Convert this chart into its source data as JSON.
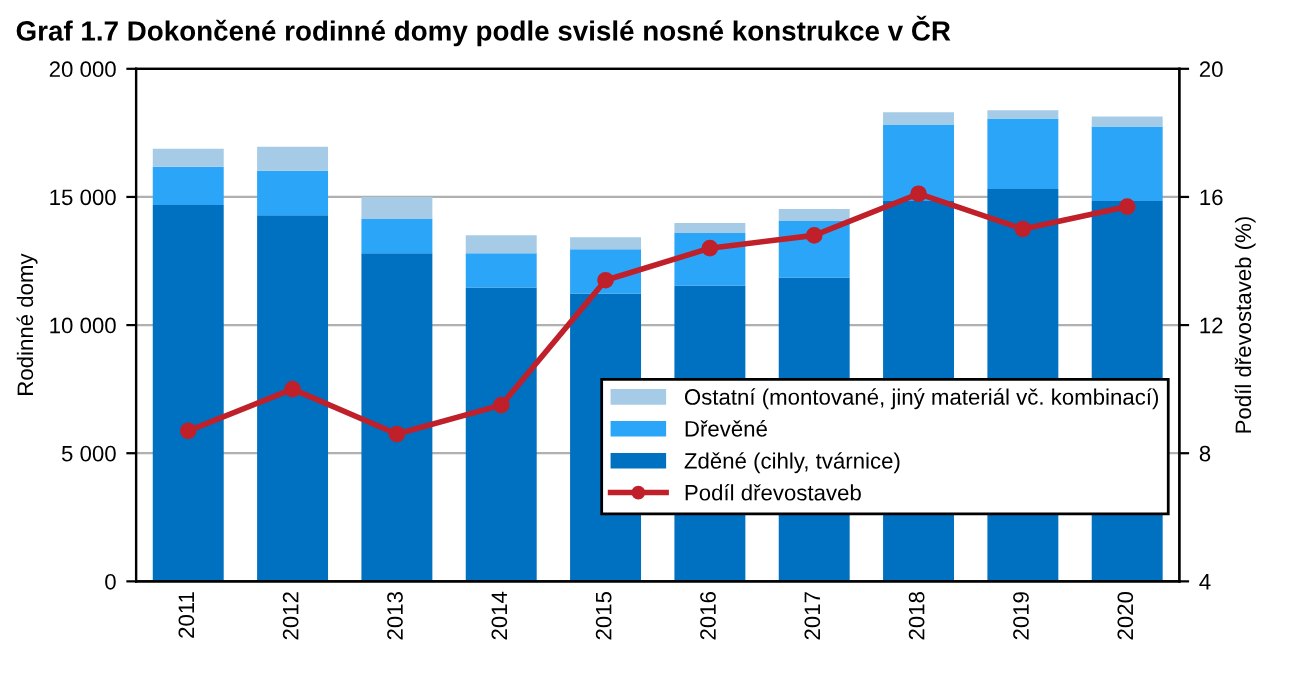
{
  "chart_data": {
    "type": "bar",
    "title": "Graf 1.7 Dokončené rodinné domy podle svislé nosné konstrukce v ČR",
    "ylabel": "Rodinné domy",
    "y2label": "Podíl dřevostaveb (%)",
    "categories": [
      "2011",
      "2012",
      "2013",
      "2014",
      "2015",
      "2016",
      "2017",
      "2018",
      "2019",
      "2020"
    ],
    "stacked": true,
    "series": [
      {
        "name": "Zděné (cihly, tvárnice)",
        "color": "#0070c0",
        "values": [
          14690,
          14290,
          12800,
          11470,
          11230,
          11540,
          11860,
          14840,
          15310,
          14840
        ]
      },
      {
        "name": "Dřevěné",
        "color": "#2aa5f8",
        "values": [
          1490,
          1730,
          1340,
          1330,
          1730,
          2050,
          2200,
          2990,
          2750,
          2910
        ]
      },
      {
        "name": "Ostatní (montované, jiný materiál vč. kombinací)",
        "color": "#a6cbe6",
        "values": [
          705,
          940,
          860,
          710,
          470,
          390,
          470,
          470,
          320,
          390
        ]
      },
      {
        "name": "Podíl dřevostaveb",
        "type": "line",
        "axis": "y2",
        "color": "#c0202a",
        "marker": "circle",
        "values": [
          8.7,
          10.0,
          8.6,
          9.5,
          13.4,
          14.4,
          14.8,
          16.1,
          15.0,
          15.7
        ]
      }
    ],
    "ylim": [
      0,
      20000
    ],
    "yticks": [
      {
        "value": 0,
        "label": "0"
      },
      {
        "value": 5000,
        "label": "5 000"
      },
      {
        "value": 10000,
        "label": "10 000"
      },
      {
        "value": 15000,
        "label": "15 000"
      },
      {
        "value": 20000,
        "label": "20 000"
      }
    ],
    "y2lim": [
      4,
      20
    ],
    "y2ticks": [
      4,
      8,
      12,
      16,
      20
    ],
    "grid": "y",
    "legend": "bottom right"
  }
}
